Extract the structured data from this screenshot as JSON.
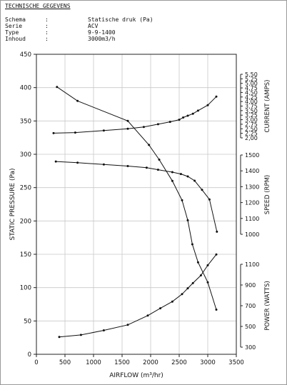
{
  "header": {
    "title": "TECHNISCHE GEGEVENS",
    "specs": [
      {
        "key": "Schema",
        "sep": ":",
        "value": "Statische druk (Pa)"
      },
      {
        "key": "Serie",
        "sep": ":",
        "value": "ACV"
      },
      {
        "key": "Type",
        "sep": ":",
        "value": "9-9-1400"
      },
      {
        "key": "Inhoud",
        "sep": ":",
        "value": "3000m3/h"
      }
    ]
  },
  "chart_data": {
    "type": "line",
    "xlabel": "AIRFLOW (m³/hr)",
    "xlim": [
      0,
      3500
    ],
    "xticks": [
      "0",
      "500",
      "1000",
      "1500",
      "2000",
      "2500",
      "3000",
      "3500"
    ],
    "grid": true,
    "axes": {
      "pressure": {
        "label": "STATIC PRESSURE (Pa)",
        "lim": [
          0,
          450
        ],
        "ticks": [
          "0",
          "50",
          "100",
          "150",
          "200",
          "250",
          "300",
          "350",
          "400",
          "450"
        ]
      },
      "current": {
        "label": "CURRENT (AMPS)",
        "lim": [
          2.0,
          5.5
        ],
        "ticks": [
          "2,00",
          "2,25",
          "2,50",
          "2,75",
          "3,00",
          "3,25",
          "3,50",
          "3,75",
          "4,00",
          "4,25",
          "4,50",
          "4,75",
          "5,00",
          "5,25",
          "5,50"
        ]
      },
      "speed": {
        "label": "SPEED (RPM)",
        "lim": [
          1000,
          1500
        ],
        "ticks": [
          "1000",
          "1100",
          "1200",
          "1300",
          "1400",
          "1500"
        ]
      },
      "power": {
        "label": "POWER (WATTS)",
        "lim": [
          300,
          1100
        ],
        "ticks": [
          "300",
          "500",
          "700",
          "900",
          "1100"
        ]
      }
    },
    "series": [
      {
        "axis": "pressure",
        "x": [
          360,
          720,
          1600,
          1970,
          2150,
          2380,
          2550,
          2650,
          2730,
          2830,
          3000,
          3150
        ],
        "y": [
          401,
          380,
          350,
          314,
          292,
          260,
          231,
          201,
          165,
          138,
          108,
          67
        ]
      },
      {
        "axis": "current",
        "x": [
          300,
          680,
          1180,
          1600,
          1880,
          2130,
          2340,
          2500,
          2570,
          2650,
          2740,
          2830,
          3000,
          3150
        ],
        "y": [
          2.26,
          2.29,
          2.4,
          2.5,
          2.6,
          2.75,
          2.88,
          3.0,
          3.12,
          3.22,
          3.33,
          3.5,
          3.8,
          4.27
        ]
      },
      {
        "axis": "speed",
        "x": [
          340,
          720,
          1180,
          1600,
          1930,
          2130,
          2380,
          2530,
          2650,
          2770,
          2900,
          3030,
          3160
        ],
        "y": [
          1459,
          1452,
          1440,
          1430,
          1420,
          1407,
          1392,
          1380,
          1365,
          1338,
          1280,
          1220,
          1016
        ]
      },
      {
        "axis": "power",
        "x": [
          400,
          780,
          1180,
          1600,
          1950,
          2170,
          2380,
          2550,
          2650,
          2740,
          2880,
          3000,
          3150
        ],
        "y": [
          398,
          418,
          462,
          515,
          605,
          675,
          740,
          812,
          868,
          918,
          993,
          1090,
          1195
        ]
      }
    ]
  }
}
